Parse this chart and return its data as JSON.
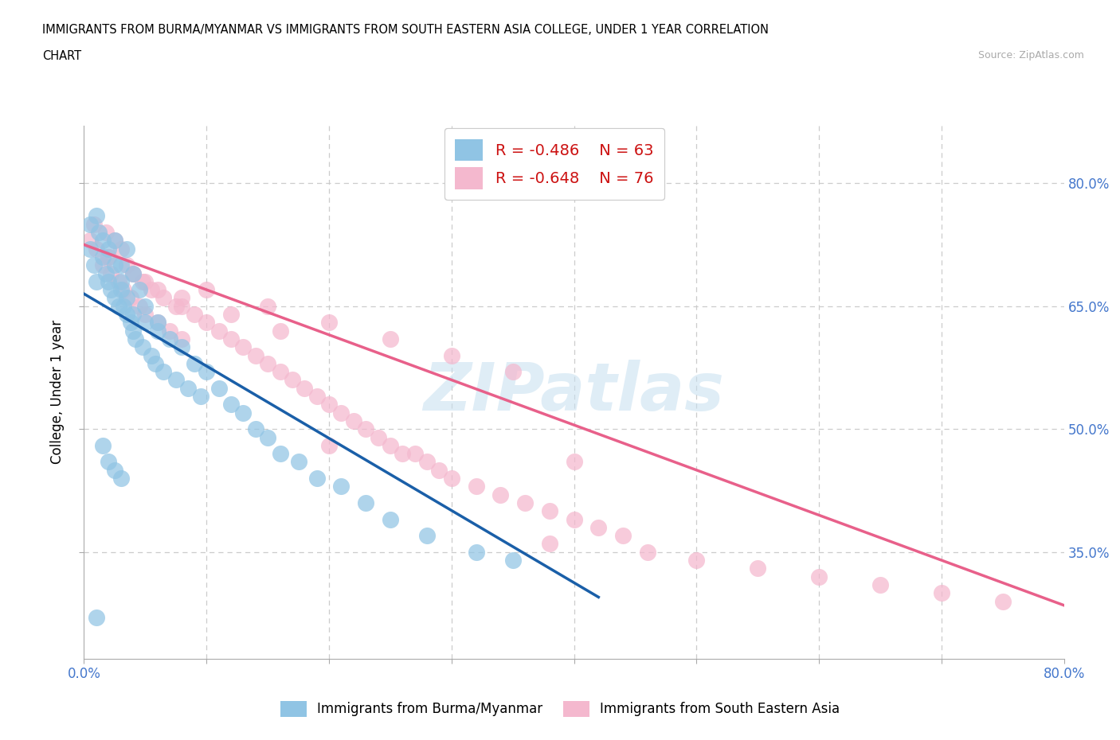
{
  "title_line1": "IMMIGRANTS FROM BURMA/MYANMAR VS IMMIGRANTS FROM SOUTH EASTERN ASIA COLLEGE, UNDER 1 YEAR CORRELATION",
  "title_line2": "CHART",
  "source_text": "Source: ZipAtlas.com",
  "ylabel": "College, Under 1 year",
  "xlim": [
    0.0,
    0.8
  ],
  "ylim": [
    0.22,
    0.87
  ],
  "y_tick_positions": [
    0.35,
    0.5,
    0.65,
    0.8
  ],
  "y_tick_labels": [
    "35.0%",
    "50.0%",
    "65.0%",
    "80.0%"
  ],
  "legend_r1": "R = -0.486",
  "legend_n1": "N = 63",
  "legend_r2": "R = -0.648",
  "legend_n2": "N = 76",
  "color_blue": "#90c4e4",
  "color_pink": "#f4b8ce",
  "color_blue_line": "#1a5fa8",
  "color_pink_line": "#e8608a",
  "watermark_text": "ZIPatlas",
  "grid_color": "#cccccc",
  "legend1_label": "Immigrants from Burma/Myanmar",
  "legend2_label": "Immigrants from South Eastern Asia",
  "blue_scatter_x": [
    0.005,
    0.008,
    0.01,
    0.012,
    0.015,
    0.018,
    0.02,
    0.022,
    0.025,
    0.025,
    0.028,
    0.03,
    0.03,
    0.032,
    0.035,
    0.035,
    0.038,
    0.04,
    0.04,
    0.042,
    0.045,
    0.048,
    0.05,
    0.055,
    0.058,
    0.06,
    0.065,
    0.07,
    0.075,
    0.08,
    0.085,
    0.09,
    0.095,
    0.1,
    0.11,
    0.12,
    0.13,
    0.14,
    0.15,
    0.16,
    0.175,
    0.19,
    0.21,
    0.23,
    0.25,
    0.005,
    0.01,
    0.015,
    0.02,
    0.025,
    0.03,
    0.035,
    0.04,
    0.05,
    0.06,
    0.015,
    0.02,
    0.025,
    0.03,
    0.28,
    0.32,
    0.35,
    0.01
  ],
  "blue_scatter_y": [
    0.72,
    0.7,
    0.68,
    0.74,
    0.71,
    0.69,
    0.68,
    0.67,
    0.66,
    0.73,
    0.65,
    0.7,
    0.67,
    0.65,
    0.72,
    0.64,
    0.63,
    0.69,
    0.62,
    0.61,
    0.67,
    0.6,
    0.65,
    0.59,
    0.58,
    0.63,
    0.57,
    0.61,
    0.56,
    0.6,
    0.55,
    0.58,
    0.54,
    0.57,
    0.55,
    0.53,
    0.52,
    0.5,
    0.49,
    0.47,
    0.46,
    0.44,
    0.43,
    0.41,
    0.39,
    0.75,
    0.76,
    0.73,
    0.72,
    0.7,
    0.68,
    0.66,
    0.64,
    0.63,
    0.62,
    0.48,
    0.46,
    0.45,
    0.44,
    0.37,
    0.35,
    0.34,
    0.27
  ],
  "pink_scatter_x": [
    0.005,
    0.008,
    0.01,
    0.015,
    0.018,
    0.02,
    0.022,
    0.025,
    0.028,
    0.03,
    0.032,
    0.035,
    0.038,
    0.04,
    0.045,
    0.048,
    0.05,
    0.055,
    0.06,
    0.065,
    0.07,
    0.075,
    0.08,
    0.09,
    0.1,
    0.11,
    0.12,
    0.13,
    0.14,
    0.15,
    0.16,
    0.17,
    0.18,
    0.19,
    0.2,
    0.21,
    0.22,
    0.23,
    0.24,
    0.25,
    0.26,
    0.27,
    0.28,
    0.29,
    0.3,
    0.32,
    0.34,
    0.36,
    0.38,
    0.4,
    0.42,
    0.44,
    0.2,
    0.4,
    0.1,
    0.15,
    0.2,
    0.25,
    0.3,
    0.35,
    0.05,
    0.08,
    0.12,
    0.16,
    0.38,
    0.46,
    0.5,
    0.55,
    0.6,
    0.65,
    0.7,
    0.75,
    0.02,
    0.04,
    0.06,
    0.08
  ],
  "pink_scatter_y": [
    0.73,
    0.75,
    0.72,
    0.7,
    0.74,
    0.71,
    0.69,
    0.73,
    0.68,
    0.72,
    0.67,
    0.7,
    0.66,
    0.69,
    0.65,
    0.68,
    0.64,
    0.67,
    0.63,
    0.66,
    0.62,
    0.65,
    0.61,
    0.64,
    0.63,
    0.62,
    0.61,
    0.6,
    0.59,
    0.58,
    0.57,
    0.56,
    0.55,
    0.54,
    0.53,
    0.52,
    0.51,
    0.5,
    0.49,
    0.48,
    0.47,
    0.47,
    0.46,
    0.45,
    0.44,
    0.43,
    0.42,
    0.41,
    0.4,
    0.39,
    0.38,
    0.37,
    0.48,
    0.46,
    0.67,
    0.65,
    0.63,
    0.61,
    0.59,
    0.57,
    0.68,
    0.66,
    0.64,
    0.62,
    0.36,
    0.35,
    0.34,
    0.33,
    0.32,
    0.31,
    0.3,
    0.29,
    0.71,
    0.69,
    0.67,
    0.65
  ],
  "blue_line_x": [
    0.0,
    0.42
  ],
  "blue_line_y": [
    0.665,
    0.295
  ],
  "pink_line_x": [
    0.0,
    0.8
  ],
  "pink_line_y": [
    0.725,
    0.285
  ]
}
